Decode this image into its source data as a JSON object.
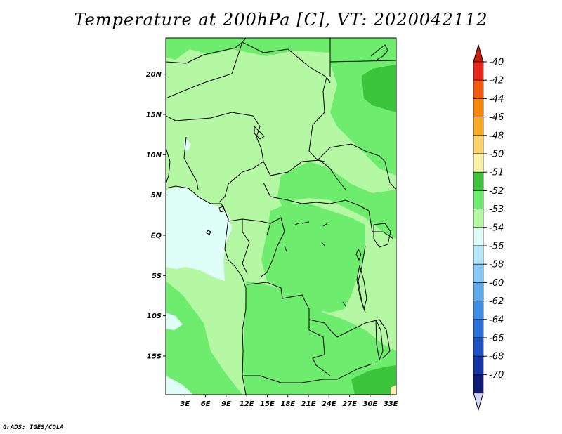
{
  "title": "Temperature at 200hPa [C], VT: 2020042112",
  "credit": "GrADS: IGES/COLA",
  "map": {
    "lat_labels": [
      "20N",
      "15N",
      "10N",
      "5N",
      "EQ",
      "5S",
      "10S",
      "15S"
    ],
    "lon_labels": [
      "3E",
      "6E",
      "9E",
      "12E",
      "15E",
      "18E",
      "21E",
      "24E",
      "27E",
      "30E",
      "33E"
    ],
    "lat_values": [
      20,
      15,
      10,
      5,
      0,
      -5,
      -10,
      -15
    ],
    "lon_values": [
      3,
      6,
      9,
      12,
      15,
      18,
      21,
      24,
      27,
      30,
      33
    ],
    "lat_range": [
      -19.8,
      24.5
    ],
    "lon_range": [
      0.2,
      33.8
    ]
  },
  "colorbar": {
    "labels": [
      "-40",
      "-42",
      "-44",
      "-46",
      "-48",
      "-50",
      "-51",
      "-52",
      "-53",
      "-54",
      "-56",
      "-58",
      "-60",
      "-62",
      "-64",
      "-66",
      "-68",
      "-70"
    ],
    "colors": [
      "#e8261a",
      "#f25a0c",
      "#f8860c",
      "#fbaa26",
      "#fdd36a",
      "#fef2a8",
      "#3cc43c",
      "#6eec6e",
      "#b4f8a4",
      "#e0fef8",
      "#b6e6fc",
      "#88caf6",
      "#5cacec",
      "#3c8ee6",
      "#2a6ed8",
      "#1e52c2",
      "#1434a6",
      "#0e1a76"
    ],
    "top_arrow_color": "#c8200e",
    "bottom_arrow_color": "#d4d4f6"
  },
  "field_colors": {
    "light": "#b4f8a4",
    "mid": "#6eec6e",
    "dark": "#3cc43c",
    "pale": "#e0fef8",
    "warm": "#fef2a8"
  }
}
